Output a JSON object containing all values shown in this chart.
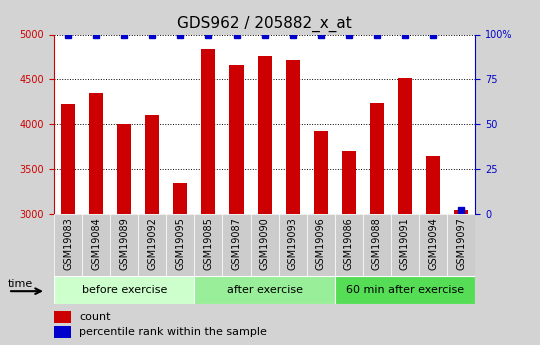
{
  "title": "GDS962 / 205882_x_at",
  "categories": [
    "GSM19083",
    "GSM19084",
    "GSM19089",
    "GSM19092",
    "GSM19095",
    "GSM19085",
    "GSM19087",
    "GSM19090",
    "GSM19093",
    "GSM19096",
    "GSM19086",
    "GSM19088",
    "GSM19091",
    "GSM19094",
    "GSM19097"
  ],
  "bar_tops": [
    4220,
    4350,
    4000,
    4100,
    3340,
    4840,
    4660,
    4760,
    4720,
    3920,
    3700,
    4240,
    4520,
    3650,
    3040
  ],
  "percentile_values": [
    100,
    100,
    100,
    100,
    100,
    100,
    100,
    100,
    100,
    100,
    100,
    100,
    100,
    100,
    2
  ],
  "bar_color": "#cc0000",
  "percentile_color": "#0000cc",
  "ylim_left": [
    3000,
    5000
  ],
  "ylim_right": [
    0,
    100
  ],
  "yticks_left": [
    3000,
    3500,
    4000,
    4500,
    5000
  ],
  "yticks_right": [
    0,
    25,
    50,
    75,
    100
  ],
  "ytick_labels_right": [
    "0",
    "25",
    "50",
    "75",
    "100%"
  ],
  "groups": [
    {
      "label": "before exercise",
      "start": 0,
      "end": 5,
      "color": "#ccffcc"
    },
    {
      "label": "after exercise",
      "start": 5,
      "end": 10,
      "color": "#99ee99"
    },
    {
      "label": "60 min after exercise",
      "start": 10,
      "end": 15,
      "color": "#55dd55"
    }
  ],
  "legend_count_label": "count",
  "legend_percentile_label": "percentile rank within the sample",
  "time_label": "time",
  "background_color": "#d3d3d3",
  "plot_bg_color": "#ffffff",
  "tick_label_bg": "#cccccc",
  "title_fontsize": 11,
  "tick_fontsize": 7,
  "group_fontsize": 8,
  "legend_fontsize": 8
}
